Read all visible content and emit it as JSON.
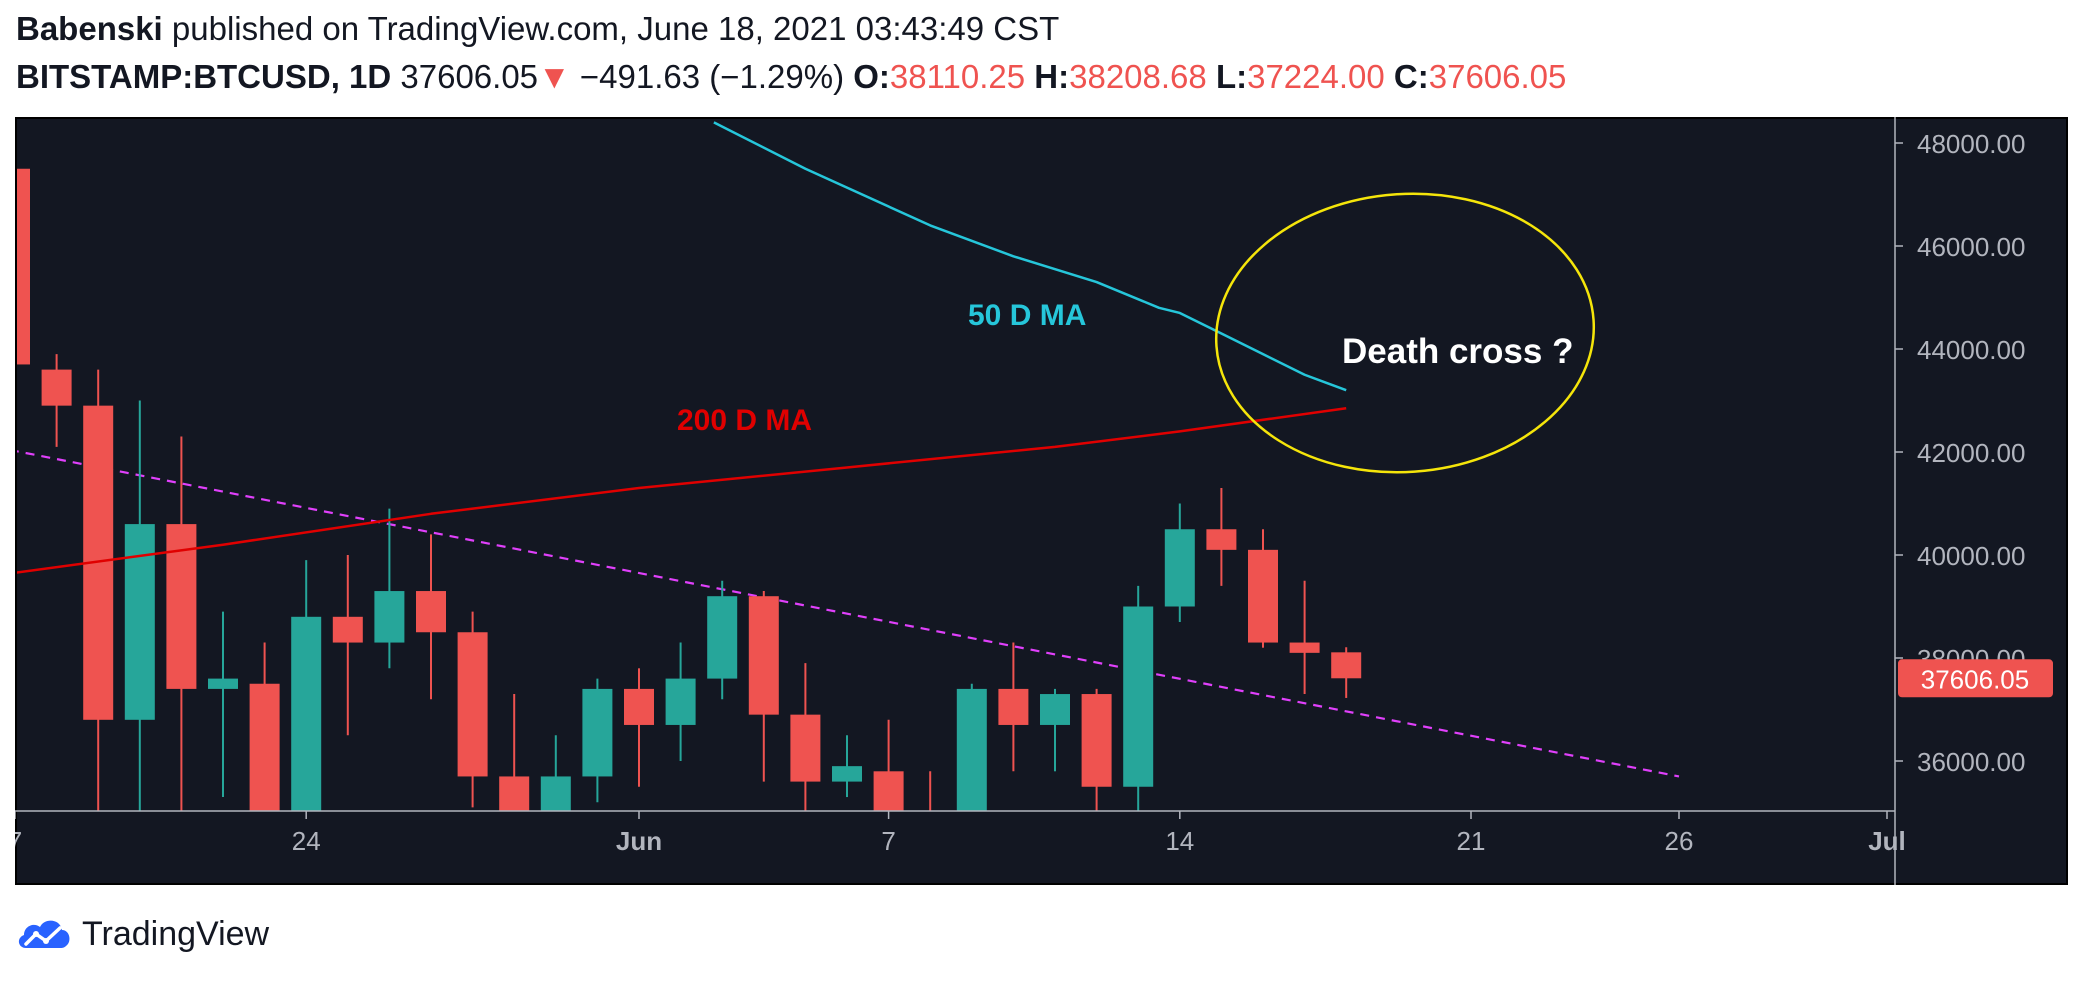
{
  "header": {
    "author": "Babenski",
    "published": "published on TradingView.com, June 18, 2021 03:43:49 CST",
    "symbol": "BITSTAMP:BTCUSD, 1D",
    "last": "37606.05",
    "arrow": "▼",
    "change": "−491.63 (−1.29%)",
    "o_label": "O:",
    "o_value": "38110.25",
    "h_label": "H:",
    "h_value": "38208.68",
    "l_label": "L:",
    "l_value": "37224.00",
    "c_label": "C:",
    "c_value": "37606.05"
  },
  "footer": {
    "brand": "TradingView"
  },
  "colors": {
    "background": "#131722",
    "up": "#26a69a",
    "down": "#ef5350",
    "ma50": "#26c6da",
    "ma200": "#e00000",
    "trendline": "#e040fb",
    "ellipse": "#f5e50a",
    "axis_text": "#b2b5be"
  },
  "chart_data": {
    "type": "candlestick",
    "y_ticks": [
      "48000.00",
      "46000.00",
      "44000.00",
      "42000.00",
      "40000.00",
      "38000.00",
      "36000.00"
    ],
    "x_ticks": [
      {
        "day": 0,
        "label": "7"
      },
      {
        "day": 7,
        "label": "24"
      },
      {
        "day": 15,
        "label": "Jun"
      },
      {
        "day": 21,
        "label": "7"
      },
      {
        "day": 28,
        "label": "14"
      },
      {
        "day": 35,
        "label": "21"
      },
      {
        "day": 40,
        "label": "26"
      },
      {
        "day": 45,
        "label": "Jul"
      }
    ],
    "price_label": "37606.05",
    "candles": [
      {
        "o": 47500,
        "h": 48500,
        "l": 43600,
        "c": 43700
      },
      {
        "o": 43600,
        "h": 43900,
        "l": 42100,
        "c": 42900
      },
      {
        "o": 42900,
        "h": 43600,
        "l": 34300,
        "c": 36800
      },
      {
        "o": 36800,
        "h": 43000,
        "l": 34500,
        "c": 40600
      },
      {
        "o": 40600,
        "h": 42300,
        "l": 35000,
        "c": 37400
      },
      {
        "o": 37400,
        "h": 38900,
        "l": 35300,
        "c": 37600
      },
      {
        "o": 37500,
        "h": 38300,
        "l": 34000,
        "c": 34700
      },
      {
        "o": 34700,
        "h": 39900,
        "l": 34400,
        "c": 38800
      },
      {
        "o": 38800,
        "h": 40000,
        "l": 36500,
        "c": 38300
      },
      {
        "o": 38300,
        "h": 40900,
        "l": 37800,
        "c": 39300
      },
      {
        "o": 39300,
        "h": 40400,
        "l": 37200,
        "c": 38500
      },
      {
        "o": 38500,
        "h": 38900,
        "l": 35100,
        "c": 35700
      },
      {
        "o": 35700,
        "h": 37300,
        "l": 34300,
        "c": 34700
      },
      {
        "o": 34700,
        "h": 36500,
        "l": 34400,
        "c": 35700
      },
      {
        "o": 35700,
        "h": 37600,
        "l": 35200,
        "c": 37400
      },
      {
        "o": 37400,
        "h": 37800,
        "l": 35500,
        "c": 36700
      },
      {
        "o": 36700,
        "h": 38300,
        "l": 36000,
        "c": 37600
      },
      {
        "o": 37600,
        "h": 39500,
        "l": 37200,
        "c": 39200
      },
      {
        "o": 39200,
        "h": 39300,
        "l": 35600,
        "c": 36900
      },
      {
        "o": 36900,
        "h": 37900,
        "l": 35000,
        "c": 35600
      },
      {
        "o": 35600,
        "h": 36500,
        "l": 35300,
        "c": 35900
      },
      {
        "o": 35800,
        "h": 36800,
        "l": 34500,
        "c": 35000
      },
      {
        "o": 35000,
        "h": 35800,
        "l": 33400,
        "c": 33500
      },
      {
        "o": 33500,
        "h": 37500,
        "l": 32600,
        "c": 37400
      },
      {
        "o": 37400,
        "h": 38300,
        "l": 35800,
        "c": 36700
      },
      {
        "o": 36700,
        "h": 37400,
        "l": 35800,
        "c": 37300
      },
      {
        "o": 37300,
        "h": 37400,
        "l": 34900,
        "c": 35500
      },
      {
        "o": 35500,
        "h": 39400,
        "l": 34800,
        "c": 39000
      },
      {
        "o": 39000,
        "h": 41000,
        "l": 38700,
        "c": 40500
      },
      {
        "o": 40500,
        "h": 41300,
        "l": 39400,
        "c": 40100
      },
      {
        "o": 40100,
        "h": 40500,
        "l": 38200,
        "c": 38300
      },
      {
        "o": 38300,
        "h": 39500,
        "l": 37300,
        "c": 38100
      },
      {
        "o": 38110.25,
        "h": 38208.68,
        "l": 37224.0,
        "c": 37606.05
      }
    ],
    "ma50": {
      "label": "50 D MA",
      "points": [
        [
          16.8,
          48400
        ],
        [
          19,
          47500
        ],
        [
          22,
          46400
        ],
        [
          24,
          45800
        ],
        [
          26,
          45300
        ],
        [
          27.5,
          44800
        ],
        [
          28,
          44700
        ],
        [
          29,
          44300
        ],
        [
          30,
          43900
        ],
        [
          31,
          43500
        ],
        [
          32,
          43200
        ]
      ]
    },
    "ma200": {
      "label": "200 D MA",
      "points": [
        [
          -0.5,
          39600
        ],
        [
          5,
          40200
        ],
        [
          10,
          40800
        ],
        [
          15,
          41300
        ],
        [
          20,
          41700
        ],
        [
          25,
          42100
        ],
        [
          28,
          42400
        ],
        [
          32,
          42850
        ]
      ]
    },
    "trendline": {
      "points": [
        [
          -0.5,
          42100
        ],
        [
          40,
          35700
        ]
      ]
    },
    "annotation": {
      "label": "Death cross ?"
    }
  }
}
